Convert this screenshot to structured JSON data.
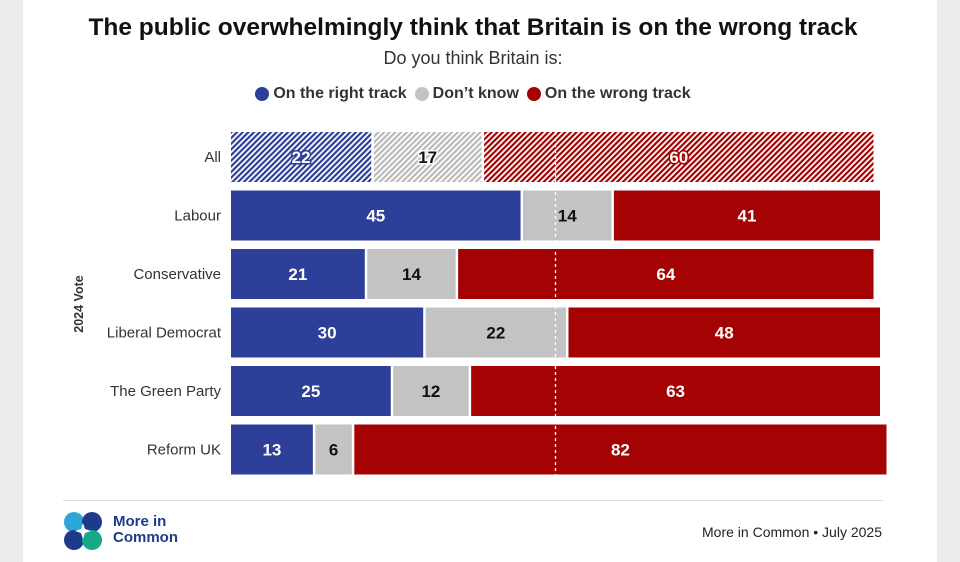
{
  "title": "The public overwhelmingly think that Britain is on the wrong track",
  "subtitle": "Do you think Britain is:",
  "legend": [
    {
      "label": "On the right track",
      "color": "#2e3f99"
    },
    {
      "label": "Don’t know",
      "color": "#c3c3c3"
    },
    {
      "label": "On the wrong track",
      "color": "#a50303"
    }
  ],
  "chart_data": {
    "type": "bar",
    "orientation": "horizontal",
    "stacked": true,
    "title": "The public overwhelmingly think that Britain is on the wrong track",
    "subtitle": "Do you think Britain is:",
    "ylabel": "2024 Vote",
    "xlim": [
      0,
      100
    ],
    "categories": [
      "All",
      "Labour",
      "Conservative",
      "Liberal Democrat",
      "The Green Party",
      "Reform UK"
    ],
    "series": [
      {
        "name": "On the right track",
        "values": [
          22,
          45,
          21,
          30,
          25,
          13
        ],
        "color": "#2e3f99"
      },
      {
        "name": "Don’t know",
        "values": [
          17,
          14,
          14,
          22,
          12,
          6
        ],
        "color": "#c3c3c3"
      },
      {
        "name": "On the wrong track",
        "values": [
          60,
          41,
          64,
          48,
          63,
          82
        ],
        "color": "#a50303"
      }
    ],
    "hatched_categories": [
      "All"
    ],
    "reference_line_at": 50,
    "legend_position": "top-center",
    "data_labels": true
  },
  "footer": {
    "logo_line1": "More in",
    "logo_line2": "Common",
    "source": "More in Common • July 2025"
  }
}
